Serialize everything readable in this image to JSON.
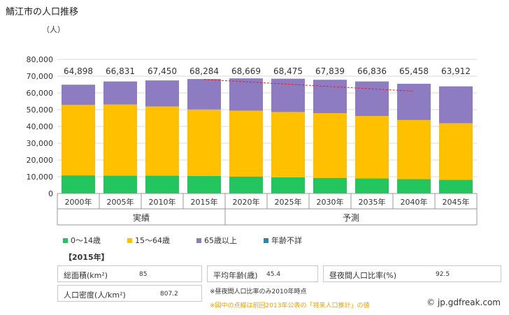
{
  "title": "鯖江市の人口推移",
  "colors": {
    "age_0_14": "#22c55e",
    "age_15_64": "#ffc000",
    "age_65_plus": "#8e7cc3",
    "unknown": "#1a8fb5",
    "trend": "#e02020"
  },
  "chart_data": {
    "type": "bar",
    "stacked": true,
    "ylabel": "（人）",
    "ylim": [
      0,
      80000
    ],
    "yticks": [
      "0",
      "10,000",
      "20,000",
      "30,000",
      "40,000",
      "50,000",
      "60,000",
      "70,000",
      "80,000"
    ],
    "categories": [
      "2000年",
      "2005年",
      "2010年",
      "2015年",
      "2020年",
      "2025年",
      "2030年",
      "2035年",
      "2040年",
      "2045年"
    ],
    "group_labels": [
      "実績",
      "予測"
    ],
    "totals": [
      64898,
      66831,
      67450,
      68284,
      68669,
      68475,
      67839,
      66836,
      65458,
      63912
    ],
    "total_labels": [
      "64,898",
      "66,831",
      "67,450",
      "68,284",
      "68,669",
      "68,475",
      "67,839",
      "66,836",
      "65,458",
      "63,912"
    ],
    "series": [
      {
        "name": "0～14歳",
        "values": [
          10800,
          10600,
          10600,
          10500,
          10100,
          9600,
          9300,
          9000,
          8600,
          8200
        ]
      },
      {
        "name": "15～64歳",
        "values": [
          42000,
          42500,
          41300,
          39600,
          39300,
          39000,
          38600,
          37200,
          35200,
          33700
        ]
      },
      {
        "name": "65歳以上",
        "values": [
          12098,
          13731,
          15550,
          18184,
          19269,
          19875,
          19939,
          20636,
          21658,
          22012
        ]
      },
      {
        "name": "年齢不詳",
        "values": [
          0,
          0,
          0,
          0,
          0,
          0,
          0,
          0,
          0,
          0
        ]
      }
    ],
    "trend_line": {
      "from_year": "2015年",
      "to_year": "2040年",
      "start": 68000,
      "end": 61000
    }
  },
  "stats_heading": "【2015年】",
  "stats": {
    "area_label": "総面積(km²)",
    "area_value": "85",
    "avg_age_label": "平均年齢(歳)",
    "avg_age_value": "45.4",
    "day_night_label": "昼夜間人口比率(%)",
    "day_night_value": "92.5",
    "density_label": "人口密度(人/km²)",
    "density_value": "807.2"
  },
  "notes": {
    "note1": "※昼夜間人口比率のみ2010年時点",
    "note2": "※図中の点線は前回2013年公表の「将来人口推計」の値"
  },
  "credit": "© jp.gdfreak.com"
}
